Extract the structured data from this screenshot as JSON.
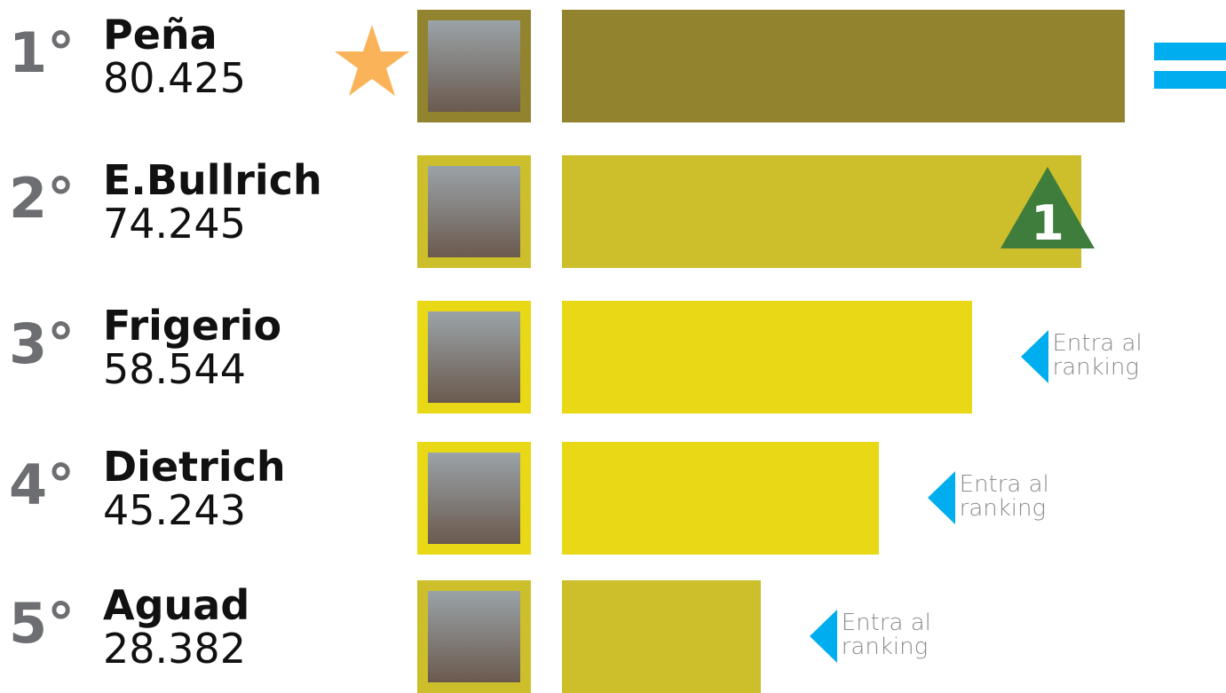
{
  "chart_data": {
    "type": "bar",
    "ranks": [
      "1°",
      "2°",
      "3°",
      "4°",
      "5°"
    ],
    "categories": [
      "Peña",
      "E.Bullrich",
      "Frigerio",
      "Dietrich",
      "Aguad"
    ],
    "values": [
      80425,
      74245,
      58544,
      45243,
      28382
    ],
    "value_labels": [
      "80.425",
      "74.245",
      "58.544",
      "45.243",
      "28.382"
    ],
    "colors": [
      "#92832f",
      "#cdbf2b",
      "#e8d816",
      "#e8d816",
      "#cdbf2b"
    ],
    "changes": [
      null,
      1,
      "Entra al ranking",
      "Entra al ranking",
      "Entra al ranking"
    ]
  }
}
